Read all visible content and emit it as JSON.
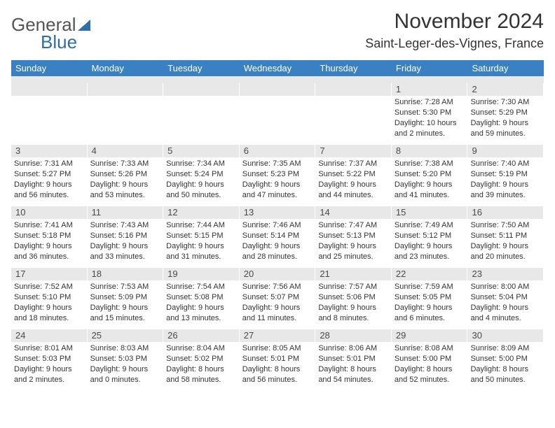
{
  "header": {
    "logo_general": "General",
    "logo_blue": "Blue",
    "month_title": "November 2024",
    "location": "Saint-Leger-des-Vignes, France"
  },
  "colors": {
    "header_bar": "#3a81c4",
    "daynum_bg": "#e8e8e8",
    "text": "#333333",
    "logo_blue": "#2f6fa8"
  },
  "weekdays": [
    "Sunday",
    "Monday",
    "Tuesday",
    "Wednesday",
    "Thursday",
    "Friday",
    "Saturday"
  ],
  "weeks": [
    [
      {
        "day": "",
        "sunrise": "",
        "sunset": "",
        "daylight": ""
      },
      {
        "day": "",
        "sunrise": "",
        "sunset": "",
        "daylight": ""
      },
      {
        "day": "",
        "sunrise": "",
        "sunset": "",
        "daylight": ""
      },
      {
        "day": "",
        "sunrise": "",
        "sunset": "",
        "daylight": ""
      },
      {
        "day": "",
        "sunrise": "",
        "sunset": "",
        "daylight": ""
      },
      {
        "day": "1",
        "sunrise": "Sunrise: 7:28 AM",
        "sunset": "Sunset: 5:30 PM",
        "daylight": "Daylight: 10 hours and 2 minutes."
      },
      {
        "day": "2",
        "sunrise": "Sunrise: 7:30 AM",
        "sunset": "Sunset: 5:29 PM",
        "daylight": "Daylight: 9 hours and 59 minutes."
      }
    ],
    [
      {
        "day": "3",
        "sunrise": "Sunrise: 7:31 AM",
        "sunset": "Sunset: 5:27 PM",
        "daylight": "Daylight: 9 hours and 56 minutes."
      },
      {
        "day": "4",
        "sunrise": "Sunrise: 7:33 AM",
        "sunset": "Sunset: 5:26 PM",
        "daylight": "Daylight: 9 hours and 53 minutes."
      },
      {
        "day": "5",
        "sunrise": "Sunrise: 7:34 AM",
        "sunset": "Sunset: 5:24 PM",
        "daylight": "Daylight: 9 hours and 50 minutes."
      },
      {
        "day": "6",
        "sunrise": "Sunrise: 7:35 AM",
        "sunset": "Sunset: 5:23 PM",
        "daylight": "Daylight: 9 hours and 47 minutes."
      },
      {
        "day": "7",
        "sunrise": "Sunrise: 7:37 AM",
        "sunset": "Sunset: 5:22 PM",
        "daylight": "Daylight: 9 hours and 44 minutes."
      },
      {
        "day": "8",
        "sunrise": "Sunrise: 7:38 AM",
        "sunset": "Sunset: 5:20 PM",
        "daylight": "Daylight: 9 hours and 41 minutes."
      },
      {
        "day": "9",
        "sunrise": "Sunrise: 7:40 AM",
        "sunset": "Sunset: 5:19 PM",
        "daylight": "Daylight: 9 hours and 39 minutes."
      }
    ],
    [
      {
        "day": "10",
        "sunrise": "Sunrise: 7:41 AM",
        "sunset": "Sunset: 5:18 PM",
        "daylight": "Daylight: 9 hours and 36 minutes."
      },
      {
        "day": "11",
        "sunrise": "Sunrise: 7:43 AM",
        "sunset": "Sunset: 5:16 PM",
        "daylight": "Daylight: 9 hours and 33 minutes."
      },
      {
        "day": "12",
        "sunrise": "Sunrise: 7:44 AM",
        "sunset": "Sunset: 5:15 PM",
        "daylight": "Daylight: 9 hours and 31 minutes."
      },
      {
        "day": "13",
        "sunrise": "Sunrise: 7:46 AM",
        "sunset": "Sunset: 5:14 PM",
        "daylight": "Daylight: 9 hours and 28 minutes."
      },
      {
        "day": "14",
        "sunrise": "Sunrise: 7:47 AM",
        "sunset": "Sunset: 5:13 PM",
        "daylight": "Daylight: 9 hours and 25 minutes."
      },
      {
        "day": "15",
        "sunrise": "Sunrise: 7:49 AM",
        "sunset": "Sunset: 5:12 PM",
        "daylight": "Daylight: 9 hours and 23 minutes."
      },
      {
        "day": "16",
        "sunrise": "Sunrise: 7:50 AM",
        "sunset": "Sunset: 5:11 PM",
        "daylight": "Daylight: 9 hours and 20 minutes."
      }
    ],
    [
      {
        "day": "17",
        "sunrise": "Sunrise: 7:52 AM",
        "sunset": "Sunset: 5:10 PM",
        "daylight": "Daylight: 9 hours and 18 minutes."
      },
      {
        "day": "18",
        "sunrise": "Sunrise: 7:53 AM",
        "sunset": "Sunset: 5:09 PM",
        "daylight": "Daylight: 9 hours and 15 minutes."
      },
      {
        "day": "19",
        "sunrise": "Sunrise: 7:54 AM",
        "sunset": "Sunset: 5:08 PM",
        "daylight": "Daylight: 9 hours and 13 minutes."
      },
      {
        "day": "20",
        "sunrise": "Sunrise: 7:56 AM",
        "sunset": "Sunset: 5:07 PM",
        "daylight": "Daylight: 9 hours and 11 minutes."
      },
      {
        "day": "21",
        "sunrise": "Sunrise: 7:57 AM",
        "sunset": "Sunset: 5:06 PM",
        "daylight": "Daylight: 9 hours and 8 minutes."
      },
      {
        "day": "22",
        "sunrise": "Sunrise: 7:59 AM",
        "sunset": "Sunset: 5:05 PM",
        "daylight": "Daylight: 9 hours and 6 minutes."
      },
      {
        "day": "23",
        "sunrise": "Sunrise: 8:00 AM",
        "sunset": "Sunset: 5:04 PM",
        "daylight": "Daylight: 9 hours and 4 minutes."
      }
    ],
    [
      {
        "day": "24",
        "sunrise": "Sunrise: 8:01 AM",
        "sunset": "Sunset: 5:03 PM",
        "daylight": "Daylight: 9 hours and 2 minutes."
      },
      {
        "day": "25",
        "sunrise": "Sunrise: 8:03 AM",
        "sunset": "Sunset: 5:03 PM",
        "daylight": "Daylight: 9 hours and 0 minutes."
      },
      {
        "day": "26",
        "sunrise": "Sunrise: 8:04 AM",
        "sunset": "Sunset: 5:02 PM",
        "daylight": "Daylight: 8 hours and 58 minutes."
      },
      {
        "day": "27",
        "sunrise": "Sunrise: 8:05 AM",
        "sunset": "Sunset: 5:01 PM",
        "daylight": "Daylight: 8 hours and 56 minutes."
      },
      {
        "day": "28",
        "sunrise": "Sunrise: 8:06 AM",
        "sunset": "Sunset: 5:01 PM",
        "daylight": "Daylight: 8 hours and 54 minutes."
      },
      {
        "day": "29",
        "sunrise": "Sunrise: 8:08 AM",
        "sunset": "Sunset: 5:00 PM",
        "daylight": "Daylight: 8 hours and 52 minutes."
      },
      {
        "day": "30",
        "sunrise": "Sunrise: 8:09 AM",
        "sunset": "Sunset: 5:00 PM",
        "daylight": "Daylight: 8 hours and 50 minutes."
      }
    ]
  ]
}
